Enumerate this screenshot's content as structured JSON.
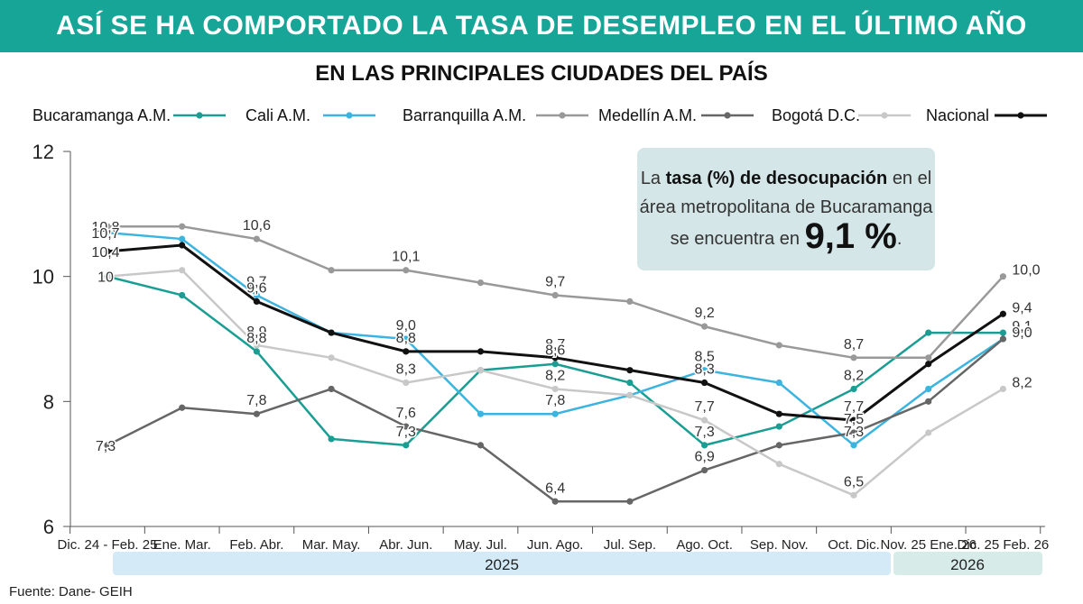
{
  "header": {
    "title": "ASÍ SE HA COMPORTADO LA TASA DE DESEMPLEO EN EL ÚLTIMO AÑO",
    "subtitle": "EN LAS PRINCIPALES CIUDADES DEL PAÍS"
  },
  "callout": {
    "text_before": "La",
    "bold": "tasa (%) de desocupación",
    "text_after": "en el",
    "line2": "área metropolitana de Bucaramanga",
    "line3": "se encuentra en",
    "value": "9,1 %",
    "end": "."
  },
  "source": "Fuente: Dane- GEIH",
  "chart_data": {
    "type": "line",
    "categories": [
      "Dic. 24 - Feb. 25",
      "Ene. Mar.",
      "Feb. Abr.",
      "Mar. May.",
      "Abr. Jun.",
      "May. Jul.",
      "Jun. Ago.",
      "Jul. Sep.",
      "Ago. Oct.",
      "Sep. Nov.",
      "Oct. Dic.",
      "Nov. 25 Ene. 26",
      "Dic. 25 Feb. 26"
    ],
    "year_labels": [
      "2025",
      "2026"
    ],
    "yticks": [
      "12",
      "10",
      "8",
      "6"
    ],
    "ylim": [
      6,
      12
    ],
    "legend_position": "top",
    "series": [
      {
        "name": "Bucaramanga A.M.",
        "color": "#1a9e93",
        "values": [
          10.0,
          9.7,
          8.8,
          7.4,
          7.3,
          8.5,
          8.6,
          8.3,
          7.3,
          7.6,
          8.2,
          9.1,
          9.1
        ]
      },
      {
        "name": "Cali A.M.",
        "color": "#3cb4e0",
        "values": [
          10.7,
          10.6,
          9.7,
          9.1,
          9.0,
          7.8,
          7.8,
          8.1,
          8.5,
          8.3,
          7.3,
          8.2,
          9.0
        ]
      },
      {
        "name": "Barranquilla A.M.",
        "color": "#999999",
        "values": [
          10.8,
          10.8,
          10.6,
          10.1,
          10.1,
          9.9,
          9.7,
          9.6,
          9.2,
          8.9,
          8.7,
          8.7,
          10.0
        ]
      },
      {
        "name": "Medellín A.M.",
        "color": "#666666",
        "values": [
          7.3,
          7.9,
          7.8,
          8.2,
          7.6,
          7.3,
          6.4,
          6.4,
          6.9,
          7.3,
          7.5,
          8.0,
          9.0
        ]
      },
      {
        "name": "Bogotá D.C.",
        "color": "#c8c8c8",
        "values": [
          10.0,
          10.1,
          8.9,
          8.7,
          8.3,
          8.5,
          8.2,
          8.1,
          7.7,
          7.0,
          6.5,
          7.5,
          8.2
        ]
      },
      {
        "name": "Nacional",
        "color": "#111111",
        "values": [
          10.4,
          10.5,
          9.6,
          9.1,
          8.8,
          8.8,
          8.7,
          8.5,
          8.3,
          7.8,
          7.7,
          8.6,
          9.4
        ]
      }
    ],
    "annotations": [
      {
        "text": "10,8",
        "cat": 0,
        "y": 10.8
      },
      {
        "text": "10,7",
        "cat": 0,
        "y": 10.7
      },
      {
        "text": "10,4",
        "cat": 0,
        "y": 10.4
      },
      {
        "text": "10",
        "cat": 0,
        "y": 10.0
      },
      {
        "text": "7,3",
        "cat": 0,
        "y": 7.3
      },
      {
        "text": "10,6",
        "cat": 2,
        "y": 10.6
      },
      {
        "text": "9,7",
        "cat": 2,
        "y": 9.7
      },
      {
        "text": "9,6",
        "cat": 2,
        "y": 9.6
      },
      {
        "text": "8,9",
        "cat": 2,
        "y": 8.9
      },
      {
        "text": "8,8",
        "cat": 2,
        "y": 8.8
      },
      {
        "text": "7,8",
        "cat": 2,
        "y": 7.8
      },
      {
        "text": "10,1",
        "cat": 4,
        "y": 10.1
      },
      {
        "text": "9,0",
        "cat": 4,
        "y": 9.0
      },
      {
        "text": "8,8",
        "cat": 4,
        "y": 8.8
      },
      {
        "text": "8,3",
        "cat": 4,
        "y": 8.3
      },
      {
        "text": "7,6",
        "cat": 4,
        "y": 7.6
      },
      {
        "text": "7,3",
        "cat": 4,
        "y": 7.3
      },
      {
        "text": "9,7",
        "cat": 6,
        "y": 9.7
      },
      {
        "text": "8,7",
        "cat": 6,
        "y": 8.7
      },
      {
        "text": "8,6",
        "cat": 6,
        "y": 8.6
      },
      {
        "text": "8,2",
        "cat": 6,
        "y": 8.2
      },
      {
        "text": "7,8",
        "cat": 6,
        "y": 7.8
      },
      {
        "text": "6,4",
        "cat": 6,
        "y": 6.4
      },
      {
        "text": "9,2",
        "cat": 8,
        "y": 9.2
      },
      {
        "text": "8,5",
        "cat": 8,
        "y": 8.5
      },
      {
        "text": "8,3",
        "cat": 8,
        "y": 8.3
      },
      {
        "text": "7,7",
        "cat": 8,
        "y": 7.7
      },
      {
        "text": "7,3",
        "cat": 8,
        "y": 7.3
      },
      {
        "text": "6,9",
        "cat": 8,
        "y": 6.9
      },
      {
        "text": "8,7",
        "cat": 10,
        "y": 8.7
      },
      {
        "text": "8,2",
        "cat": 10,
        "y": 8.2
      },
      {
        "text": "7,7",
        "cat": 10,
        "y": 7.7
      },
      {
        "text": "7,5",
        "cat": 10,
        "y": 7.5
      },
      {
        "text": "7,3",
        "cat": 10,
        "y": 7.3
      },
      {
        "text": "6,5",
        "cat": 10,
        "y": 6.5
      },
      {
        "text": "10,0",
        "cat": 12,
        "y": 10.0
      },
      {
        "text": "9,4",
        "cat": 12,
        "y": 9.4
      },
      {
        "text": "9,1",
        "cat": 12,
        "y": 9.1
      },
      {
        "text": "9,0",
        "cat": 12,
        "y": 9.0
      },
      {
        "text": "8,2",
        "cat": 12,
        "y": 8.2
      }
    ]
  }
}
